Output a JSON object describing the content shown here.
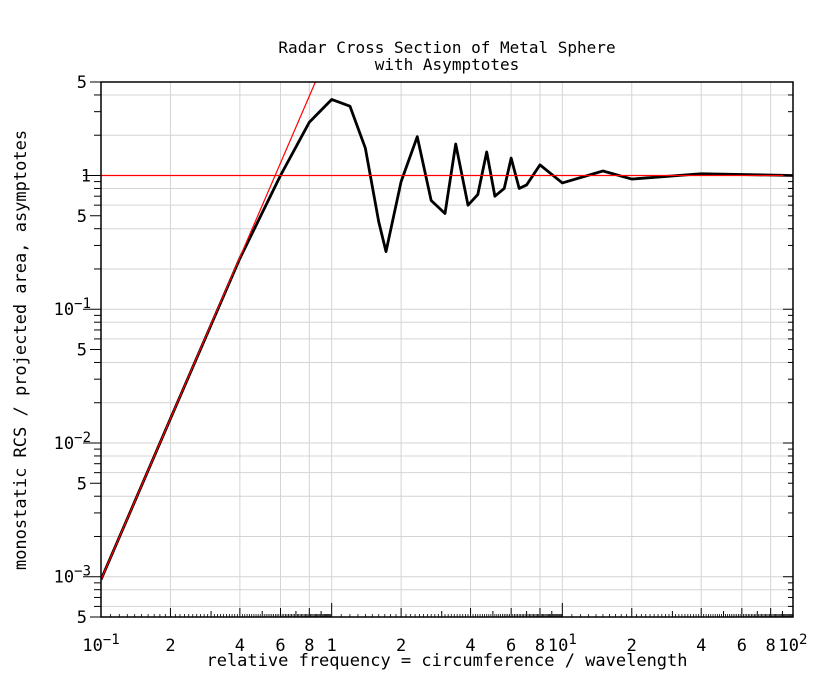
{
  "chart_data": {
    "type": "line",
    "title": "Radar Cross Section of Metal Sphere",
    "subtitle": "with Asymptotes",
    "xlabel": "relative frequency = circumference / wavelength",
    "ylabel": "monostatic RCS / projected area, asymptotes",
    "x_scale": "log",
    "y_scale": "log",
    "xlim": [
      0.1,
      100
    ],
    "ylim": [
      0.0005,
      5
    ],
    "grid": true,
    "x_major_ticks": [
      {
        "value": 0.1,
        "base": "10",
        "exp": "−1"
      },
      {
        "value": 1,
        "base": "1",
        "exp": ""
      },
      {
        "value": 10,
        "base": "10",
        "exp": "1"
      },
      {
        "value": 100,
        "base": "10",
        "exp": "2"
      }
    ],
    "x_minor_labels": [
      {
        "value": 0.2,
        "label": "2"
      },
      {
        "value": 0.4,
        "label": "4"
      },
      {
        "value": 0.6,
        "label": "6"
      },
      {
        "value": 0.8,
        "label": "8"
      },
      {
        "value": 2,
        "label": "2"
      },
      {
        "value": 4,
        "label": "4"
      },
      {
        "value": 6,
        "label": "6"
      },
      {
        "value": 8,
        "label": "8"
      },
      {
        "value": 20,
        "label": "2"
      },
      {
        "value": 40,
        "label": "4"
      },
      {
        "value": 60,
        "label": "6"
      },
      {
        "value": 80,
        "label": "8"
      }
    ],
    "y_major_ticks": [
      {
        "value": 0.001,
        "base": "10",
        "exp": "−3"
      },
      {
        "value": 0.01,
        "base": "10",
        "exp": "−2"
      },
      {
        "value": 0.1,
        "base": "10",
        "exp": "−1"
      },
      {
        "value": 1,
        "base": "1",
        "exp": ""
      }
    ],
    "y_minor_labels": [
      {
        "value": 0.0005,
        "label": "5"
      },
      {
        "value": 0.005,
        "label": "5"
      },
      {
        "value": 0.05,
        "label": "5"
      },
      {
        "value": 0.5,
        "label": "5"
      },
      {
        "value": 5,
        "label": "5"
      }
    ],
    "series": [
      {
        "color": "#000000",
        "x": [
          0.1,
          0.2,
          0.4,
          0.6,
          0.8,
          1.0,
          1.2,
          1.4,
          1.6,
          1.72,
          2.0,
          2.35,
          2.7,
          3.1,
          3.45,
          3.9,
          4.3,
          4.7,
          5.1,
          5.6,
          6.0,
          6.5,
          7.0,
          8.0,
          10.0,
          15.0,
          20.0,
          40.0,
          100.0
        ],
        "y": [
          0.00095,
          0.0152,
          0.24,
          1.0,
          2.5,
          3.7,
          3.3,
          1.6,
          0.45,
          0.27,
          0.9,
          1.95,
          0.65,
          0.52,
          1.72,
          0.6,
          0.72,
          1.5,
          0.7,
          0.8,
          1.35,
          0.8,
          0.85,
          1.2,
          0.88,
          1.08,
          0.94,
          1.03,
          1.0
        ]
      },
      {
        "color": "#ff0000",
        "x": [
          0.1,
          0.85
        ],
        "y": [
          0.00095,
          5
        ]
      },
      {
        "color": "#ff0000",
        "x": [
          0.1,
          100
        ],
        "y": [
          1,
          1
        ]
      }
    ]
  }
}
